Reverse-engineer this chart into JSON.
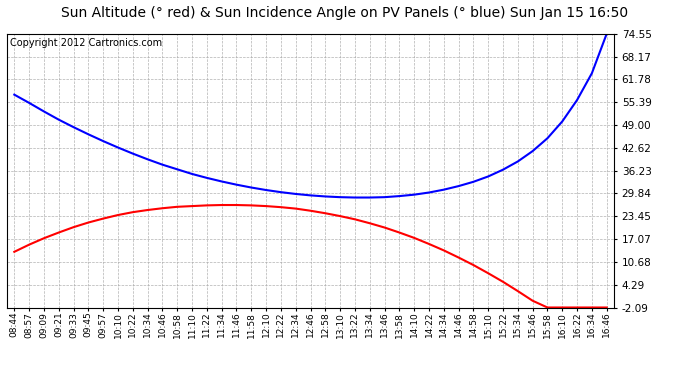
{
  "title": "Sun Altitude (° red) & Sun Incidence Angle on PV Panels (° blue) Sun Jan 15 16:50",
  "copyright": "Copyright 2012 Cartronics.com",
  "background_color": "#ffffff",
  "plot_bg_color": "#ffffff",
  "grid_color": "#aaaaaa",
  "x_labels": [
    "08:44",
    "08:57",
    "09:09",
    "09:21",
    "09:33",
    "09:45",
    "09:57",
    "10:10",
    "10:22",
    "10:34",
    "10:46",
    "10:58",
    "11:10",
    "11:22",
    "11:34",
    "11:46",
    "11:58",
    "12:10",
    "12:22",
    "12:34",
    "12:46",
    "12:58",
    "13:10",
    "13:22",
    "13:34",
    "13:46",
    "13:58",
    "14:10",
    "14:22",
    "14:34",
    "14:46",
    "14:58",
    "15:10",
    "15:22",
    "15:34",
    "15:46",
    "15:58",
    "16:10",
    "16:22",
    "16:34",
    "16:46"
  ],
  "y_ticks": [
    -2.09,
    4.29,
    10.68,
    17.07,
    23.45,
    29.84,
    36.23,
    42.62,
    49.0,
    55.39,
    61.78,
    68.17,
    74.55
  ],
  "y_min": -2.09,
  "y_max": 74.55,
  "red_line": [
    13.5,
    15.5,
    17.3,
    18.9,
    20.4,
    21.7,
    22.8,
    23.8,
    24.6,
    25.2,
    25.7,
    26.1,
    26.3,
    26.5,
    26.6,
    26.6,
    26.5,
    26.3,
    26.0,
    25.6,
    25.0,
    24.3,
    23.5,
    22.6,
    21.5,
    20.3,
    18.9,
    17.4,
    15.7,
    13.9,
    11.9,
    9.8,
    7.5,
    5.1,
    2.5,
    -0.2,
    -2.09,
    -2.09,
    -2.09,
    -2.09,
    -2.09
  ],
  "blue_line": [
    57.5,
    55.2,
    52.8,
    50.5,
    48.4,
    46.4,
    44.5,
    42.7,
    41.0,
    39.4,
    37.9,
    36.6,
    35.3,
    34.2,
    33.2,
    32.3,
    31.5,
    30.8,
    30.2,
    29.7,
    29.3,
    29.0,
    28.8,
    28.7,
    28.7,
    28.8,
    29.1,
    29.5,
    30.1,
    30.9,
    31.9,
    33.1,
    34.6,
    36.5,
    38.8,
    41.7,
    45.3,
    50.0,
    56.0,
    63.5,
    74.55
  ],
  "red_color": "#ff0000",
  "blue_color": "#0000ff",
  "line_width": 1.5,
  "title_fontsize": 10,
  "copyright_fontsize": 7,
  "tick_fontsize": 7.5,
  "xtick_fontsize": 6.5
}
